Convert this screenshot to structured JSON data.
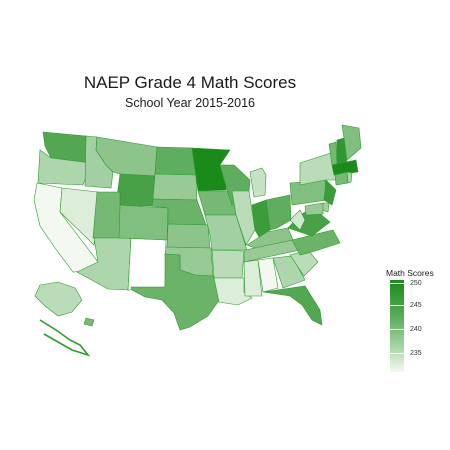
{
  "title": "NAEP Grade 4 Math Scores",
  "subtitle": "School Year 2015-2016",
  "legend": {
    "title": "Math Scores",
    "ticks": [
      "250",
      "245",
      "240",
      "235"
    ]
  },
  "colors": {
    "high": "#1a8a1a",
    "low": "#f3f9f1",
    "missing": "#ffffff",
    "border": "#2e9a2e"
  },
  "map_data": {
    "type": "choropleth",
    "region": "United States",
    "scale_range": [
      232,
      251
    ],
    "states": {
      "WA": 246,
      "OR": 238,
      "CA": 232,
      "NV": 234,
      "ID": 239,
      "MT": 241,
      "WY": 247,
      "UT": 243,
      "AZ": 238,
      "NM": null,
      "CO": 242,
      "ND": 245,
      "SD": 240,
      "NE": 244,
      "KS": 241,
      "OK": 240,
      "TX": 244,
      "MN": 251,
      "IA": 243,
      "MO": 239,
      "AR": 237,
      "LA": 234,
      "WI": 245,
      "IL": 237,
      "MI": 236,
      "IN": 248,
      "OH": 245,
      "KY": 241,
      "TN": 240,
      "MS": 234,
      "AL": 231,
      "GA": 238,
      "FL": 246,
      "SC": 237,
      "NC": 244,
      "VA": 247,
      "WV": 235,
      "PA": 242,
      "NY": 237,
      "VT": 243,
      "NH": 249,
      "ME": 242,
      "MA": 251,
      "CT": 243,
      "RI": 238,
      "NJ": 248,
      "DE": 239,
      "MD": 240,
      "AK": 237,
      "HI": 243
    }
  }
}
